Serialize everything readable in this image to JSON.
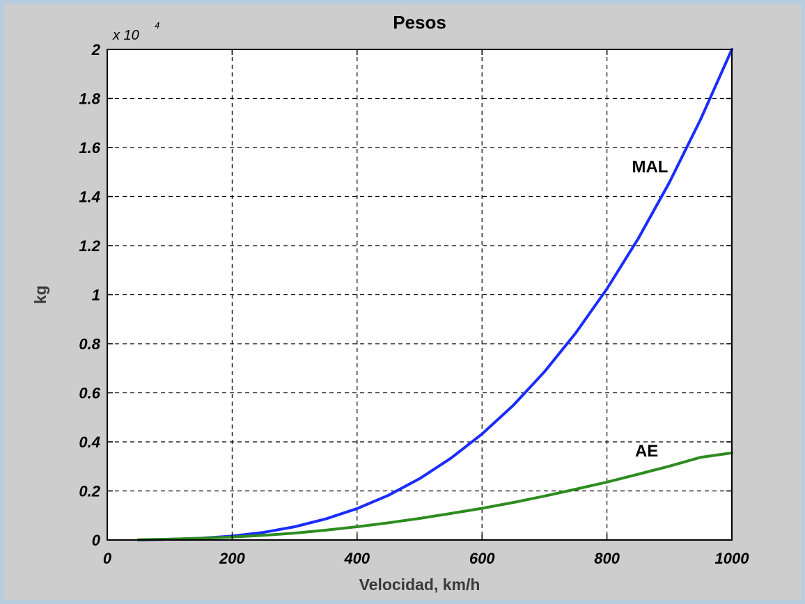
{
  "chart_data": {
    "type": "line",
    "title": "Pesos",
    "xlabel": "Velocidad, km/h",
    "ylabel": "kg",
    "y_multiplier": "x 10",
    "y_exponent": "4",
    "xlim": [
      0,
      1000
    ],
    "ylim": [
      0,
      20000
    ],
    "grid": true,
    "x_ticks": [
      0,
      200,
      400,
      600,
      800,
      1000
    ],
    "x_tick_labels": [
      "0",
      "200",
      "400",
      "600",
      "800",
      "1000"
    ],
    "y_ticks": [
      0,
      2000,
      4000,
      6000,
      8000,
      10000,
      12000,
      14000,
      16000,
      18000,
      20000
    ],
    "y_tick_labels": [
      "0",
      "0.2",
      "0.4",
      "0.6",
      "0.8",
      "1",
      "1.2",
      "1.4",
      "1.6",
      "1.8",
      "2"
    ],
    "series": [
      {
        "name": "MAL",
        "color": "#1a2cff",
        "x": [
          50,
          100,
          150,
          200,
          250,
          300,
          350,
          400,
          450,
          500,
          550,
          600,
          650,
          700,
          750,
          800,
          850,
          900,
          950,
          1000
        ],
        "y": [
          0,
          30,
          70,
          160,
          310,
          540,
          860,
          1280,
          1820,
          2500,
          3330,
          4320,
          5490,
          6860,
          8440,
          10240,
          12280,
          14580,
          17150,
          20000
        ]
      },
      {
        "name": "AE",
        "color": "#2e8b1f",
        "x": [
          50,
          100,
          150,
          200,
          250,
          300,
          350,
          400,
          450,
          500,
          550,
          600,
          650,
          700,
          750,
          800,
          850,
          900,
          950,
          1000
        ],
        "y": [
          10,
          30,
          70,
          120,
          190,
          280,
          400,
          540,
          700,
          880,
          1080,
          1290,
          1530,
          1790,
          2070,
          2360,
          2680,
          3010,
          3370,
          3550
        ]
      }
    ],
    "annotations": [
      {
        "text": "MAL",
        "x": 840,
        "y": 15000
      },
      {
        "text": "AE",
        "x": 845,
        "y": 3400
      }
    ]
  }
}
